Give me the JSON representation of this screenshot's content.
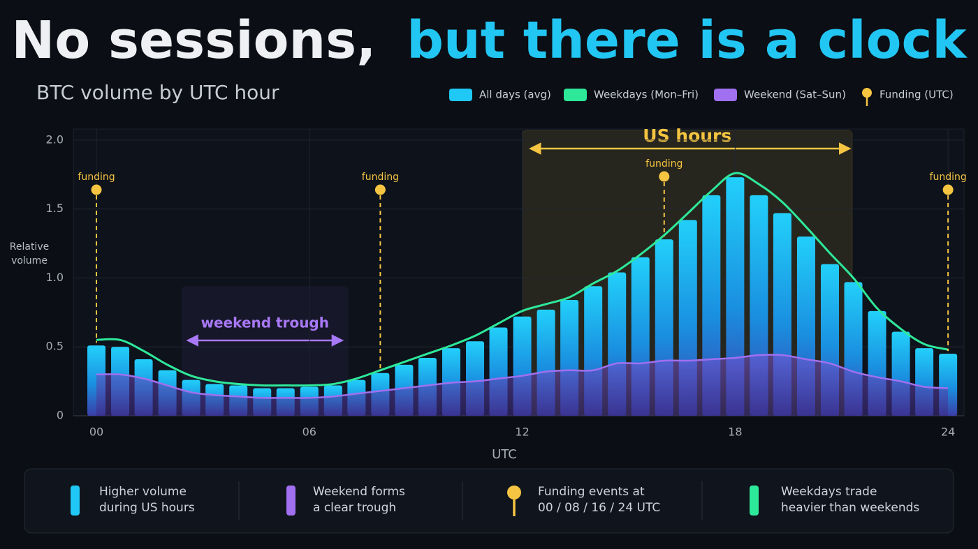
{
  "chart_data": {
    "type": "bar",
    "title": [
      "No sessions,",
      "but there is a clock"
    ],
    "subtitle": "BTC volume by UTC hour",
    "y_label": [
      "Relative",
      "volume"
    ],
    "x_label": "UTC",
    "x": [
      0,
      0.67,
      1.33,
      2,
      2.67,
      3.33,
      4,
      4.67,
      5.33,
      6,
      6.67,
      7.33,
      8,
      8.67,
      9.33,
      10,
      10.67,
      11.33,
      12,
      12.67,
      13.33,
      14,
      14.67,
      15.33,
      16,
      16.67,
      17.33,
      18,
      18.67,
      19.33,
      20,
      20.67,
      21.33,
      22,
      22.67,
      23.33,
      24
    ],
    "series": [
      {
        "name": "All days (avg)",
        "color": "#1fc8f5",
        "style": "bar",
        "values": [
          0.51,
          0.5,
          0.41,
          0.33,
          0.26,
          0.23,
          0.22,
          0.2,
          0.2,
          0.21,
          0.22,
          0.26,
          0.31,
          0.37,
          0.42,
          0.49,
          0.54,
          0.64,
          0.72,
          0.77,
          0.84,
          0.94,
          1.04,
          1.15,
          1.28,
          1.42,
          1.6,
          1.73,
          1.6,
          1.47,
          1.3,
          1.1,
          0.97,
          0.76,
          0.61,
          0.49,
          0.45
        ]
      },
      {
        "name": "Weekdays (Mon–Fri)",
        "color": "#2ee89a",
        "style": "line",
        "values": [
          0.55,
          0.55,
          0.47,
          0.37,
          0.29,
          0.25,
          0.23,
          0.22,
          0.22,
          0.22,
          0.23,
          0.27,
          0.33,
          0.39,
          0.45,
          0.51,
          0.58,
          0.67,
          0.76,
          0.81,
          0.86,
          0.96,
          1.05,
          1.17,
          1.31,
          1.47,
          1.63,
          1.76,
          1.68,
          1.55,
          1.37,
          1.18,
          1.0,
          0.78,
          0.63,
          0.52,
          0.48
        ]
      },
      {
        "name": "Weekend (Sat–Sun)",
        "color": "#a070f0",
        "style": "area",
        "values": [
          0.3,
          0.3,
          0.27,
          0.22,
          0.17,
          0.15,
          0.14,
          0.13,
          0.13,
          0.13,
          0.14,
          0.16,
          0.18,
          0.2,
          0.22,
          0.24,
          0.25,
          0.27,
          0.29,
          0.32,
          0.33,
          0.33,
          0.38,
          0.38,
          0.4,
          0.4,
          0.41,
          0.42,
          0.44,
          0.44,
          0.41,
          0.38,
          0.32,
          0.28,
          0.25,
          0.21,
          0.2
        ]
      }
    ],
    "funding": {
      "name": "Funding (UTC)",
      "color": "#f5c542",
      "markers": [
        {
          "x": 0,
          "label": "funding"
        },
        {
          "x": 8,
          "label": "funding"
        },
        {
          "x": 16,
          "label": "funding"
        },
        {
          "x": 24,
          "label": "funding"
        }
      ]
    },
    "regions": [
      {
        "label": "US hours",
        "x": [
          12,
          21.3
        ],
        "color": "#f5c542"
      },
      {
        "label": "weekend trough",
        "x": [
          2.4,
          7.1
        ],
        "color": "#a878f5"
      }
    ],
    "xlim": [
      -0.65,
      24.45
    ],
    "ylim": [
      0,
      2.08
    ],
    "xticks": [
      {
        "value": 0,
        "label": "00"
      },
      {
        "value": 6,
        "label": "06"
      },
      12,
      18,
      24
    ],
    "yticks": [
      0,
      0.5,
      {
        "value": 1,
        "label": "1.0"
      },
      1.5,
      {
        "value": 2,
        "label": "2.0"
      }
    ],
    "grid": true,
    "legend": "top-right",
    "notes": [
      {
        "lines": [
          "Higher volume",
          "during US hours"
        ],
        "icon": "bar",
        "color": "#1fc8f5"
      },
      {
        "lines": [
          "Weekend forms",
          "a clear trough"
        ],
        "icon": "bar",
        "color": "#a070f0"
      },
      {
        "lines": [
          "Funding events at",
          "00 / 08 / 16 / 24 UTC"
        ],
        "icon": "pin",
        "color": "#f5c542"
      },
      {
        "lines": [
          "Weekdays trade",
          "heavier than weekends"
        ],
        "icon": "bar",
        "color": "#2ee89a"
      }
    ]
  }
}
